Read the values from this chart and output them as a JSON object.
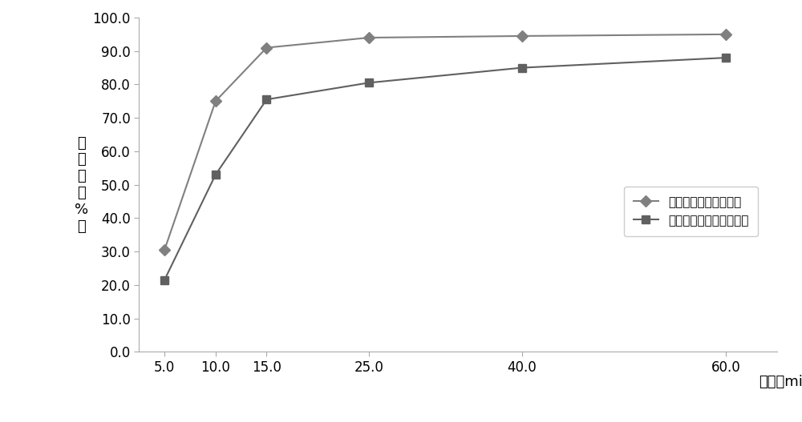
{
  "series1_label": "氯雷他定组合物咀嚼片",
  "series2_label": "氯雷他定咀嚼片（市售）",
  "x_values": [
    5.0,
    10.0,
    15.0,
    25.0,
    40.0,
    60.0
  ],
  "series1_y": [
    30.5,
    75.0,
    91.0,
    94.0,
    94.5,
    95.0
  ],
  "series2_y": [
    21.5,
    53.0,
    75.5,
    80.5,
    85.0,
    88.0
  ],
  "series1_color": "#808080",
  "series2_color": "#606060",
  "xlabel": "时间（min）",
  "ylabel_top": "溶",
  "ylabel_chars": [
    "溶",
    "出",
    "度",
    "（",
    "%",
    "）"
  ],
  "ylim": [
    0,
    100
  ],
  "yticks": [
    0.0,
    10.0,
    20.0,
    30.0,
    40.0,
    50.0,
    60.0,
    70.0,
    80.0,
    90.0,
    100.0
  ],
  "xticks": [
    5.0,
    10.0,
    15.0,
    25.0,
    40.0,
    60.0
  ],
  "background_color": "#ffffff",
  "line_width": 1.5,
  "marker_size": 7,
  "tick_fontsize": 12,
  "label_fontsize": 13
}
